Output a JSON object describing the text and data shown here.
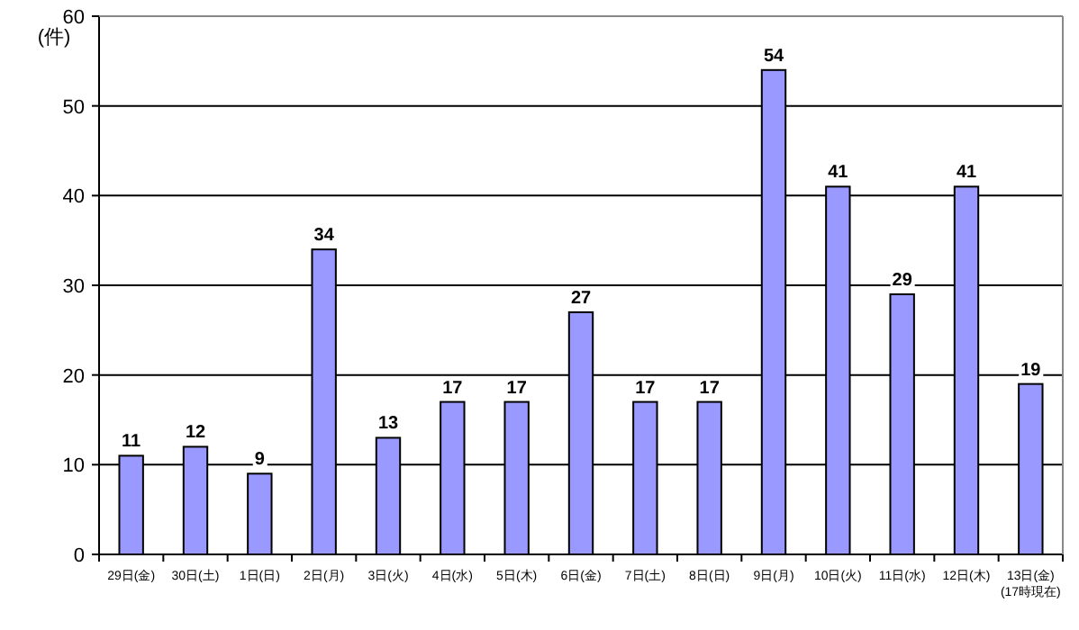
{
  "chart_data": {
    "type": "bar",
    "ylabel": "(件)",
    "categories": [
      "29日(金)",
      "30日(土)",
      "1日(日)",
      "2日(月)",
      "3日(火)",
      "4日(水)",
      "5日(木)",
      "6日(金)",
      "7日(土)",
      "8日(日)",
      "9日(月)",
      "10日(火)",
      "11日(水)",
      "12日(木)",
      "13日(金)\n(17時現在)"
    ],
    "values": [
      11,
      12,
      9,
      34,
      13,
      17,
      17,
      27,
      17,
      17,
      54,
      41,
      29,
      41,
      19
    ],
    "color": "#9999ff",
    "ylim": [
      0,
      60
    ],
    "yticks": [
      0,
      10,
      20,
      30,
      40,
      50,
      60
    ],
    "grid": "y",
    "data_labels": true
  }
}
